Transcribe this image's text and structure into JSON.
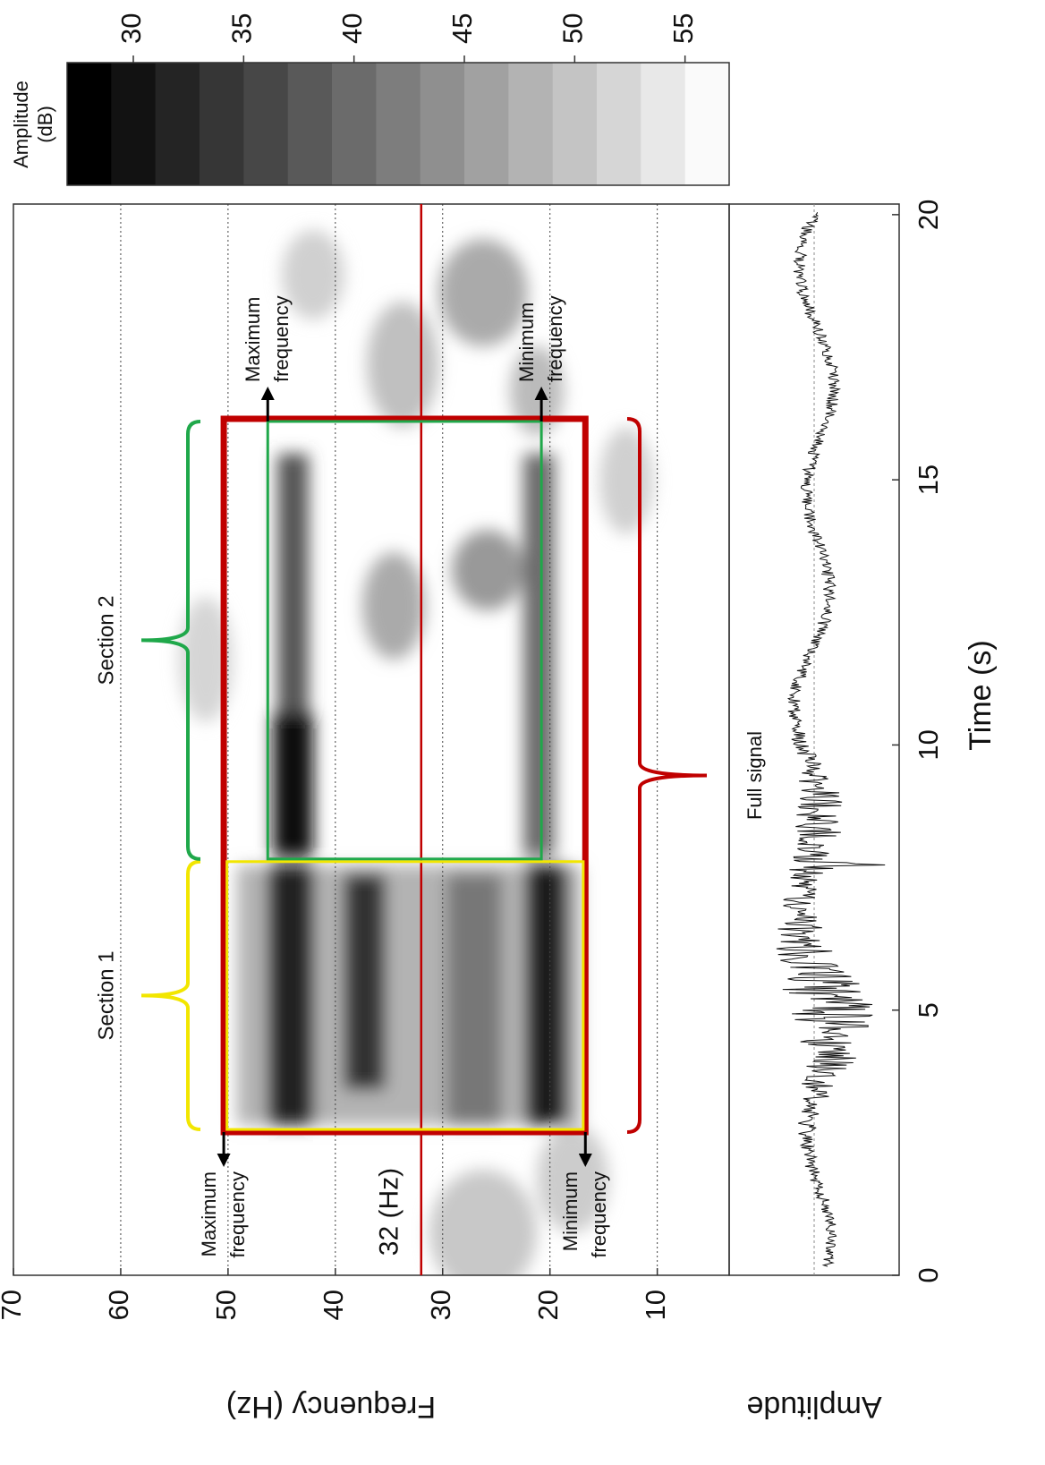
{
  "chart_data": {
    "type": "spectrogram",
    "x_label": "Time (s)",
    "y_label": "Frequency (Hz)",
    "lower_y_label": "Amplitude",
    "xlim": [
      0,
      20.2
    ],
    "xticks": [
      0,
      5,
      10,
      15,
      20
    ],
    "ylim": [
      3.3,
      70
    ],
    "yticks": [
      10,
      20,
      30,
      40,
      50,
      60,
      70
    ],
    "grid": true,
    "colorbar": {
      "label": [
        "Amplitude",
        "(dB)"
      ],
      "lim": [
        27,
        57
      ],
      "ticks": [
        30,
        35,
        40,
        45,
        50,
        55
      ]
    },
    "reference_line": {
      "value": 32,
      "label": "32 (Hz)",
      "color": "#c00000"
    },
    "regions": [
      {
        "name": "Full signal",
        "color": "#c00000",
        "x": [
          2.7,
          16.15
        ],
        "y": [
          16.7,
          50.4
        ],
        "bracket": "below",
        "arrows": "start",
        "max_label": [
          "Maximum",
          "frequency"
        ],
        "min_label": [
          "Minimum",
          "frequency"
        ]
      },
      {
        "name": "Section 1",
        "color": "#f2e600",
        "x": [
          2.75,
          7.8
        ],
        "y": [
          16.9,
          50.1
        ],
        "bracket": "above"
      },
      {
        "name": "Section 2",
        "color": "#1fa84a",
        "x": [
          7.85,
          16.1
        ],
        "y": [
          20.8,
          46.3
        ],
        "bracket": "above",
        "arrows": "end",
        "max_label": [
          "Maximum",
          "frequency"
        ],
        "min_label": [
          "Minimum",
          "frequency"
        ]
      }
    ]
  }
}
